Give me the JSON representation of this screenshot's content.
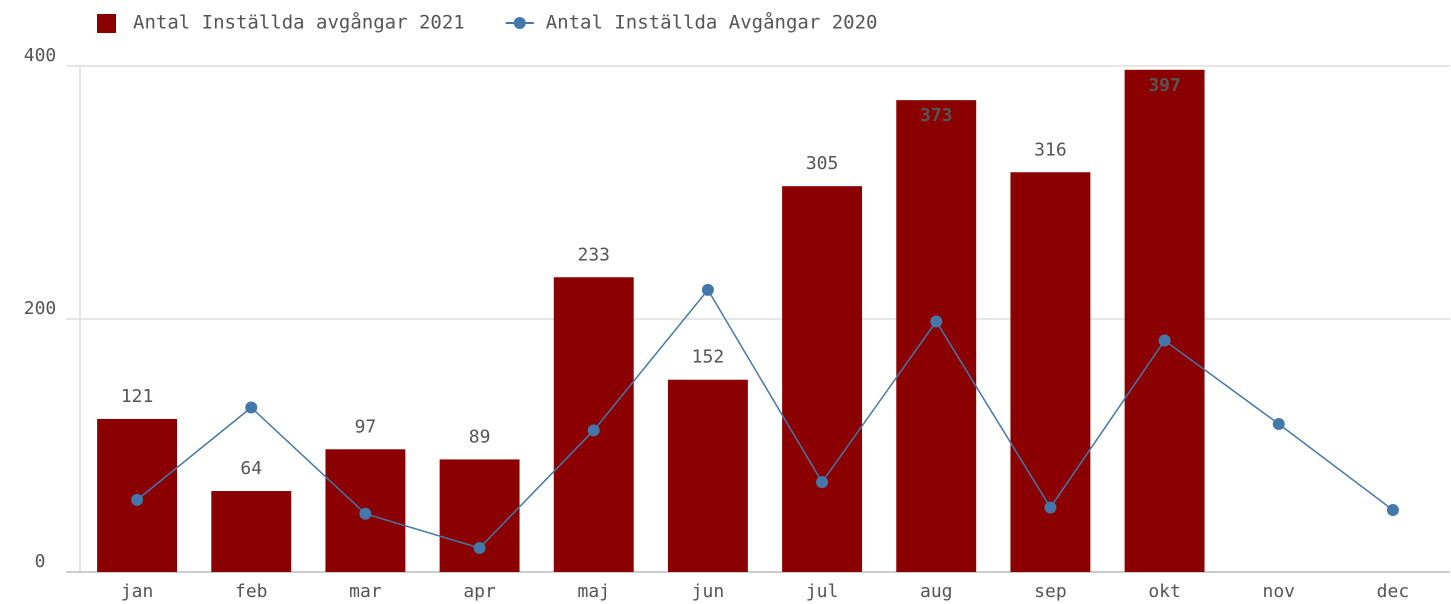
{
  "chart_data": {
    "type": "bar_line",
    "categories": [
      "jan",
      "feb",
      "mar",
      "apr",
      "maj",
      "jun",
      "jul",
      "aug",
      "sep",
      "okt",
      "nov",
      "dec"
    ],
    "series": [
      {
        "name": "Antal Inställda avgångar 2021",
        "type": "bar",
        "color": "#8b0000",
        "values": [
          121,
          64,
          97,
          89,
          233,
          152,
          305,
          373,
          316,
          397,
          null,
          null
        ]
      },
      {
        "name": "Antal Inställda Avgångar 2020",
        "type": "line",
        "color": "#4477aa",
        "values": [
          57,
          130,
          46,
          19,
          112,
          223,
          71,
          198,
          51,
          183,
          117,
          49
        ]
      }
    ],
    "ylim": [
      0,
      400
    ],
    "yticks": [
      0,
      200,
      400
    ],
    "grid": true,
    "legend": "top-left"
  }
}
